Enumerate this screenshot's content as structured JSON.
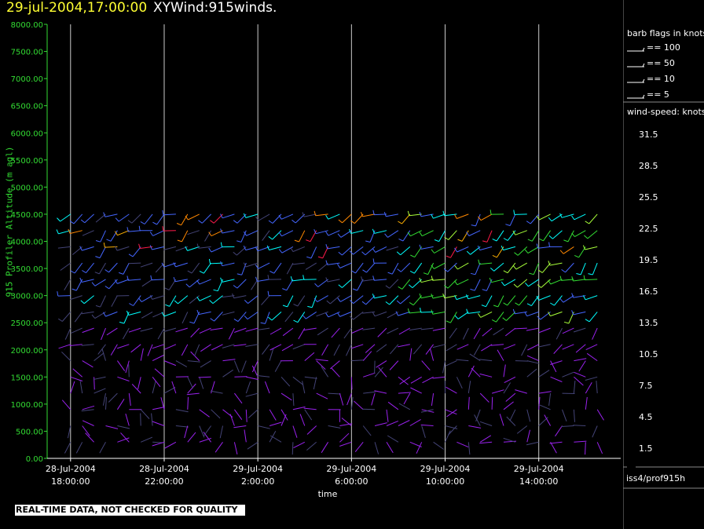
{
  "header": {
    "date_time": "29-jul-2004,17:00:00",
    "product": "XYWind:915winds."
  },
  "footer": {
    "disclaimer": "REAL-TIME DATA, NOT CHECKED FOR QUALITY",
    "source": "iss4/prof915h"
  },
  "legend": {
    "barb_title": "barb flags in knots",
    "barb_entries": [
      "== 100",
      "== 50",
      "== 10",
      "== 5"
    ],
    "speed_title": "wind-speed: knots",
    "speed_levels": [
      {
        "label": "31.5",
        "color": "#ff1a4a"
      },
      {
        "label": "28.5",
        "color": "#ff8800"
      },
      {
        "label": "25.5",
        "color": "#ffb000"
      },
      {
        "label": "22.5",
        "color": "#ffff00"
      },
      {
        "label": "19.5",
        "color": "#a8ff3a"
      },
      {
        "label": "16.5",
        "color": "#33dd33"
      },
      {
        "label": "13.5",
        "color": "#00ffff"
      },
      {
        "label": "10.5",
        "color": "#4466ff"
      },
      {
        "label": "7.5",
        "color": "#444477"
      },
      {
        "label": "4.5",
        "color": "#9a22ee"
      },
      {
        "label": "1.5",
        "color": "#e070e0"
      }
    ]
  },
  "chart_data": {
    "type": "scatter",
    "title": "XYWind:915winds.",
    "xlabel": "time",
    "ylabel": "915 Profiler Altitude (m agl)",
    "ylim": [
      0,
      8000
    ],
    "yticks": [
      "0.00",
      "500.00",
      "1000.00",
      "1500.00",
      "2000.00",
      "2500.00",
      "3000.00",
      "3500.00",
      "4000.00",
      "4500.00",
      "5000.00",
      "5500.00",
      "6000.00",
      "6500.00",
      "7000.00",
      "7500.00",
      "8000.00"
    ],
    "xticks": [
      {
        "date": "28-Jul-2004",
        "time": "18:00:00"
      },
      {
        "date": "28-Jul-2004",
        "time": "22:00:00"
      },
      {
        "date": "29-Jul-2004",
        "time": "2:00:00"
      },
      {
        "date": "29-Jul-2004",
        "time": "6:00:00"
      },
      {
        "date": "29-Jul-2004",
        "time": "10:00:00"
      },
      {
        "date": "29-Jul-2004",
        "time": "14:00:00"
      }
    ],
    "x_range_hours": [
      -1,
      23.5
    ],
    "x_start": "28-Jul-2004 17:00:00",
    "grid_vertical": true,
    "profile_times_hours": [
      0.0,
      0.5,
      1.0,
      1.5,
      2.0,
      2.5,
      3.0,
      3.5,
      4.0,
      4.5,
      5.0,
      5.5,
      6.0,
      6.5,
      7.0,
      7.5,
      8.0,
      8.5,
      9.0,
      9.5,
      10.0,
      10.5,
      11.0,
      11.5,
      12.0,
      12.5,
      13.0,
      13.5,
      14.0,
      14.5,
      15.0,
      15.5,
      16.0,
      16.5,
      17.0,
      17.5,
      18.0,
      18.5,
      19.0,
      19.5,
      20.0,
      20.5,
      21.0,
      21.5,
      22.0,
      22.5
    ],
    "profile_altitudes_m": [
      300,
      600,
      900,
      1200,
      1500,
      1800,
      2100,
      2400,
      2700,
      3000,
      3300,
      3600,
      3900,
      4200,
      4500
    ],
    "barb_encoding": "each barb's color encodes wind speed in knots per legend"
  }
}
